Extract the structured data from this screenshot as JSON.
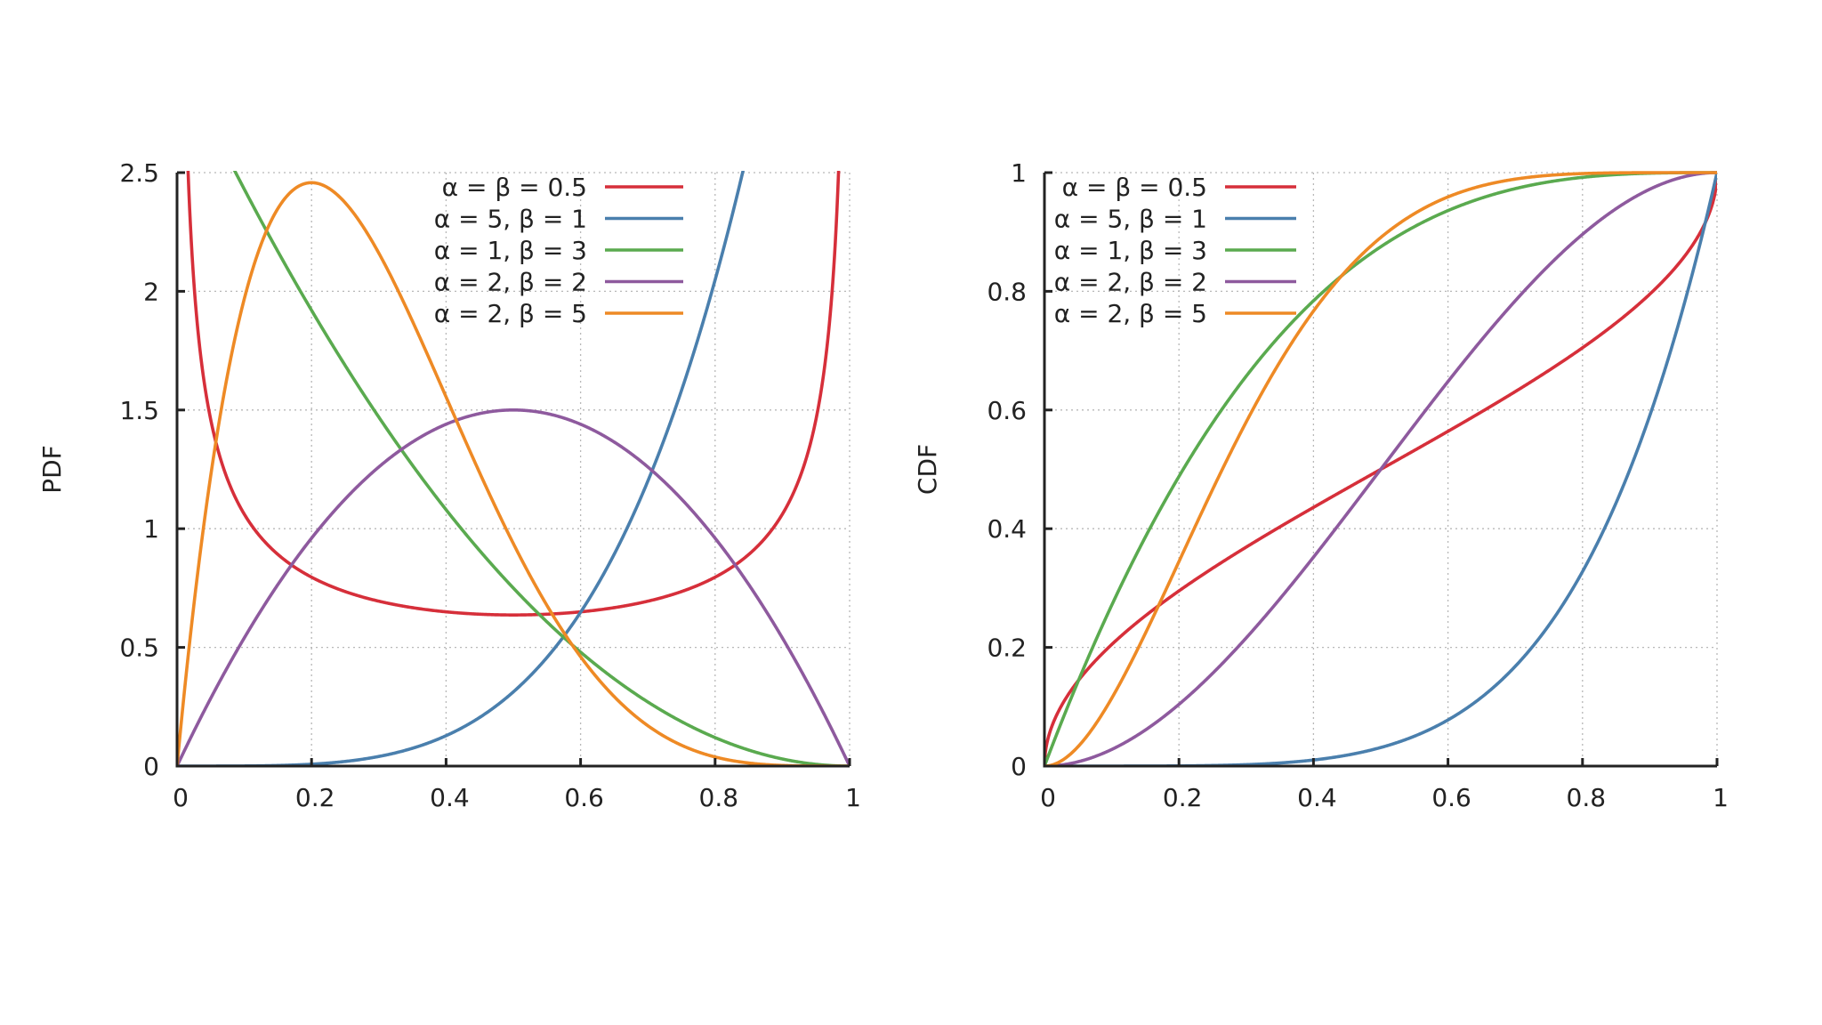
{
  "chart_data": [
    {
      "type": "line",
      "function": "pdf",
      "title": "",
      "xlabel": "",
      "ylabel": "PDF",
      "xlim": [
        0,
        1
      ],
      "ylim": [
        0,
        2.5
      ],
      "x_ticks": [
        "0",
        "0.2",
        "0.4",
        "0.6",
        "0.8",
        "1"
      ],
      "y_ticks": [
        "0",
        "0.5",
        "1",
        "1.5",
        "2",
        "2.5"
      ],
      "grid": true,
      "legend_position": "top-right",
      "series": [
        {
          "name": "α = β = 0.5",
          "alpha": 0.5,
          "beta": 0.5,
          "color": "#d62f3a"
        },
        {
          "name": "α = 5, β = 1",
          "alpha": 5,
          "beta": 1,
          "color": "#4a7fad"
        },
        {
          "name": "α = 1, β = 3",
          "alpha": 1,
          "beta": 3,
          "color": "#5aaa4f"
        },
        {
          "name": "α = 2, β = 2",
          "alpha": 2,
          "beta": 2,
          "color": "#8e5a9e"
        },
        {
          "name": "α = 2, β = 5",
          "alpha": 2,
          "beta": 5,
          "color": "#ee8a25"
        }
      ]
    },
    {
      "type": "line",
      "function": "cdf",
      "title": "",
      "xlabel": "",
      "ylabel": "CDF",
      "xlim": [
        0,
        1
      ],
      "ylim": [
        0,
        1
      ],
      "x_ticks": [
        "0",
        "0.2",
        "0.4",
        "0.6",
        "0.8",
        "1"
      ],
      "y_ticks": [
        "0",
        "0.2",
        "0.4",
        "0.6",
        "0.8",
        "1"
      ],
      "grid": true,
      "legend_position": "top-left",
      "series": [
        {
          "name": "α = β = 0.5",
          "alpha": 0.5,
          "beta": 0.5,
          "color": "#d62f3a"
        },
        {
          "name": "α = 5, β = 1",
          "alpha": 5,
          "beta": 1,
          "color": "#4a7fad"
        },
        {
          "name": "α = 1, β = 3",
          "alpha": 1,
          "beta": 3,
          "color": "#5aaa4f"
        },
        {
          "name": "α = 2, β = 2",
          "alpha": 2,
          "beta": 2,
          "color": "#8e5a9e"
        },
        {
          "name": "α = 2, β = 5",
          "alpha": 2,
          "beta": 5,
          "color": "#ee8a25"
        }
      ]
    }
  ]
}
